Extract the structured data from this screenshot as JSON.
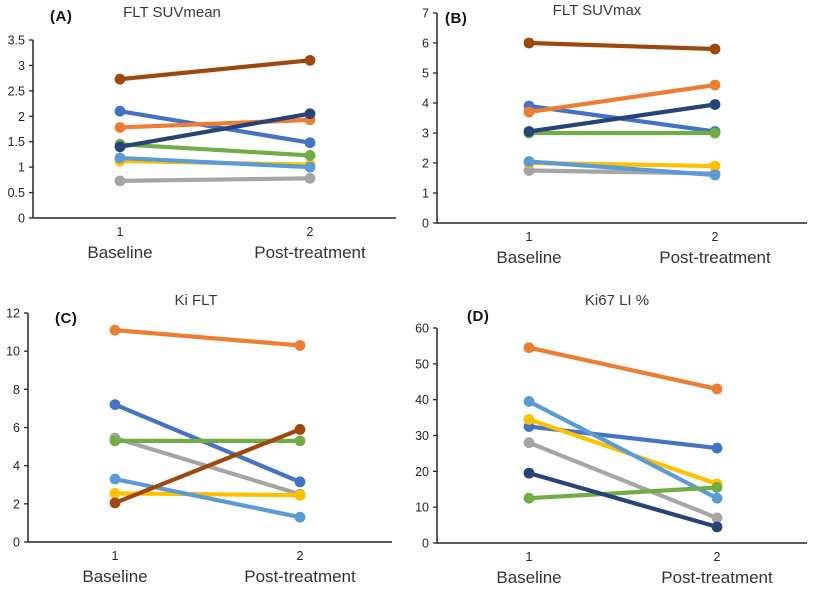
{
  "figure": {
    "background": "#ffffff",
    "axis_color": "#262626",
    "tick_label_color": "#262626",
    "category_label_color": "#333333"
  },
  "chart_data": [
    {
      "type": "line",
      "panel_label": "(A)",
      "title": "FLT SUVmean",
      "x": [
        1,
        2
      ],
      "x_tick_labels": [
        "1",
        "2"
      ],
      "x_category_labels": [
        "Baseline",
        "Post-treatment"
      ],
      "ylim": [
        0,
        3.5
      ],
      "ytick_step": 0.5,
      "grid": false,
      "legend": "none",
      "series": [
        {
          "name": "series-blue",
          "color": "#4472C4",
          "values": [
            2.1,
            1.48
          ]
        },
        {
          "name": "series-orange",
          "color": "#ED7D31",
          "values": [
            1.78,
            1.93
          ]
        },
        {
          "name": "series-gray",
          "color": "#A5A5A5",
          "values": [
            0.73,
            0.78
          ]
        },
        {
          "name": "series-yellow",
          "color": "#FFC000",
          "values": [
            1.12,
            1.05
          ]
        },
        {
          "name": "series-light-blue",
          "color": "#5B9BD5",
          "values": [
            1.18,
            1.0
          ]
        },
        {
          "name": "series-green",
          "color": "#70AD47",
          "values": [
            1.45,
            1.23
          ]
        },
        {
          "name": "series-navy",
          "color": "#264478",
          "values": [
            1.4,
            2.05
          ]
        },
        {
          "name": "series-brown",
          "color": "#9E480E",
          "values": [
            2.73,
            3.1
          ]
        }
      ]
    },
    {
      "type": "line",
      "panel_label": "(B)",
      "title": "FLT SUVmax",
      "x": [
        1,
        2
      ],
      "x_tick_labels": [
        "1",
        "2"
      ],
      "x_category_labels": [
        "Baseline",
        "Post-treatment"
      ],
      "ylim": [
        0,
        7
      ],
      "ytick_step": 1,
      "grid": false,
      "legend": "none",
      "series": [
        {
          "name": "series-blue",
          "color": "#4472C4",
          "values": [
            3.9,
            3.05
          ]
        },
        {
          "name": "series-orange",
          "color": "#ED7D31",
          "values": [
            3.7,
            4.6
          ]
        },
        {
          "name": "series-gray",
          "color": "#A5A5A5",
          "values": [
            1.75,
            1.65
          ]
        },
        {
          "name": "series-yellow",
          "color": "#FFC000",
          "values": [
            2.0,
            1.9
          ]
        },
        {
          "name": "series-light-blue",
          "color": "#5B9BD5",
          "values": [
            2.05,
            1.6
          ]
        },
        {
          "name": "series-green",
          "color": "#70AD47",
          "values": [
            3.0,
            3.0
          ]
        },
        {
          "name": "series-navy",
          "color": "#264478",
          "values": [
            3.05,
            3.95
          ]
        },
        {
          "name": "series-brown",
          "color": "#9E480E",
          "values": [
            6.0,
            5.8
          ]
        }
      ]
    },
    {
      "type": "line",
      "panel_label": "(C)",
      "title": "Ki FLT",
      "x": [
        1,
        2
      ],
      "x_tick_labels": [
        "1",
        "2"
      ],
      "x_category_labels": [
        "Baseline",
        "Post-treatment"
      ],
      "ylim": [
        0,
        12
      ],
      "ytick_step": 2,
      "grid": false,
      "legend": "none",
      "series": [
        {
          "name": "series-blue",
          "color": "#4472C4",
          "values": [
            7.2,
            3.15
          ]
        },
        {
          "name": "series-orange",
          "color": "#ED7D31",
          "values": [
            11.1,
            10.3
          ]
        },
        {
          "name": "series-gray",
          "color": "#A5A5A5",
          "values": [
            5.45,
            2.5
          ]
        },
        {
          "name": "series-yellow",
          "color": "#FFC000",
          "values": [
            2.55,
            2.45
          ]
        },
        {
          "name": "series-light-blue",
          "color": "#5B9BD5",
          "values": [
            3.3,
            1.3
          ]
        },
        {
          "name": "series-green",
          "color": "#70AD47",
          "values": [
            5.3,
            5.3
          ]
        },
        {
          "name": "series-brown",
          "color": "#9E480E",
          "values": [
            2.05,
            5.9
          ]
        }
      ]
    },
    {
      "type": "line",
      "panel_label": "(D)",
      "title": "Ki67 LI %",
      "x": [
        1,
        2
      ],
      "x_tick_labels": [
        "1",
        "2"
      ],
      "x_category_labels": [
        "Baseline",
        "Post-treatment"
      ],
      "ylim": [
        0,
        60
      ],
      "ytick_step": 10,
      "grid": false,
      "legend": "none",
      "series": [
        {
          "name": "series-blue",
          "color": "#4472C4",
          "values": [
            32.5,
            26.5
          ]
        },
        {
          "name": "series-orange",
          "color": "#ED7D31",
          "values": [
            54.5,
            43.0
          ]
        },
        {
          "name": "series-gray",
          "color": "#A5A5A5",
          "values": [
            28.0,
            7.0
          ]
        },
        {
          "name": "series-yellow",
          "color": "#FFC000",
          "values": [
            34.5,
            16.5
          ]
        },
        {
          "name": "series-light-blue",
          "color": "#5B9BD5",
          "values": [
            39.5,
            12.5
          ]
        },
        {
          "name": "series-green",
          "color": "#70AD47",
          "values": [
            12.5,
            15.5
          ]
        },
        {
          "name": "series-navy",
          "color": "#264478",
          "values": [
            19.5,
            4.5
          ]
        }
      ]
    }
  ]
}
